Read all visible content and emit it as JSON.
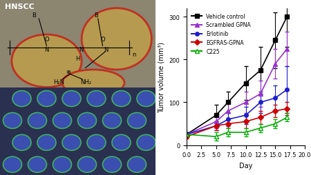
{
  "image_panel": {
    "label": "HNSCC",
    "structure_texts": [
      "B",
      "O",
      "N",
      "N",
      "O",
      "B",
      "N",
      "H",
      "n",
      "H₂N",
      "NH₂",
      "⊕"
    ]
  },
  "chart_data": {
    "type": "line",
    "x_label": "Day",
    "y_label": "Tumor volume (mm³)",
    "x": [
      0,
      5,
      7,
      10,
      12.5,
      15,
      17
    ],
    "xlim": [
      0,
      20
    ],
    "xticks": [
      {
        "value": 0,
        "label": "0.0"
      },
      {
        "value": 2.5,
        "label": "2.5"
      },
      {
        "value": 5,
        "label": "5.0"
      },
      {
        "value": 7.5,
        "label": "7.5"
      },
      {
        "value": 10,
        "label": "10.0"
      },
      {
        "value": 12.5,
        "label": "12.5"
      },
      {
        "value": 15,
        "label": "15.0"
      },
      {
        "value": 17.5,
        "label": "17.5"
      },
      {
        "value": 20,
        "label": "20.0"
      }
    ],
    "ylim": [
      0,
      320
    ],
    "yticks": [
      0,
      100,
      200,
      300
    ],
    "legend": "upper left",
    "series": [
      {
        "name": "Vehicle control",
        "color": "#000000",
        "marker": "square",
        "values": [
          25,
          70,
          100,
          145,
          175,
          245,
          300
        ],
        "errors": [
          5,
          25,
          25,
          40,
          55,
          65,
          70
        ]
      },
      {
        "name": "Scrambled GPNA",
        "color": "#9933cc",
        "marker": "triangle",
        "values": [
          25,
          55,
          80,
          100,
          120,
          190,
          225
        ],
        "errors": [
          5,
          15,
          20,
          25,
          30,
          35,
          40
        ]
      },
      {
        "name": "Erlotinib",
        "color": "#1f1fcc",
        "marker": "circle",
        "values": [
          25,
          45,
          60,
          70,
          100,
          110,
          130
        ],
        "errors": [
          5,
          10,
          15,
          20,
          25,
          30,
          55
        ]
      },
      {
        "name": "EGFRAS-GPNA",
        "color": "#cc0000",
        "marker": "diamond",
        "values": [
          20,
          45,
          50,
          55,
          65,
          80,
          85
        ],
        "errors": [
          5,
          10,
          10,
          15,
          15,
          15,
          15
        ]
      },
      {
        "name": "C225",
        "color": "#00aa00",
        "marker": "triangle_open",
        "values": [
          25,
          20,
          30,
          30,
          40,
          50,
          65
        ],
        "errors": [
          5,
          10,
          10,
          10,
          10,
          10,
          10
        ]
      }
    ]
  }
}
